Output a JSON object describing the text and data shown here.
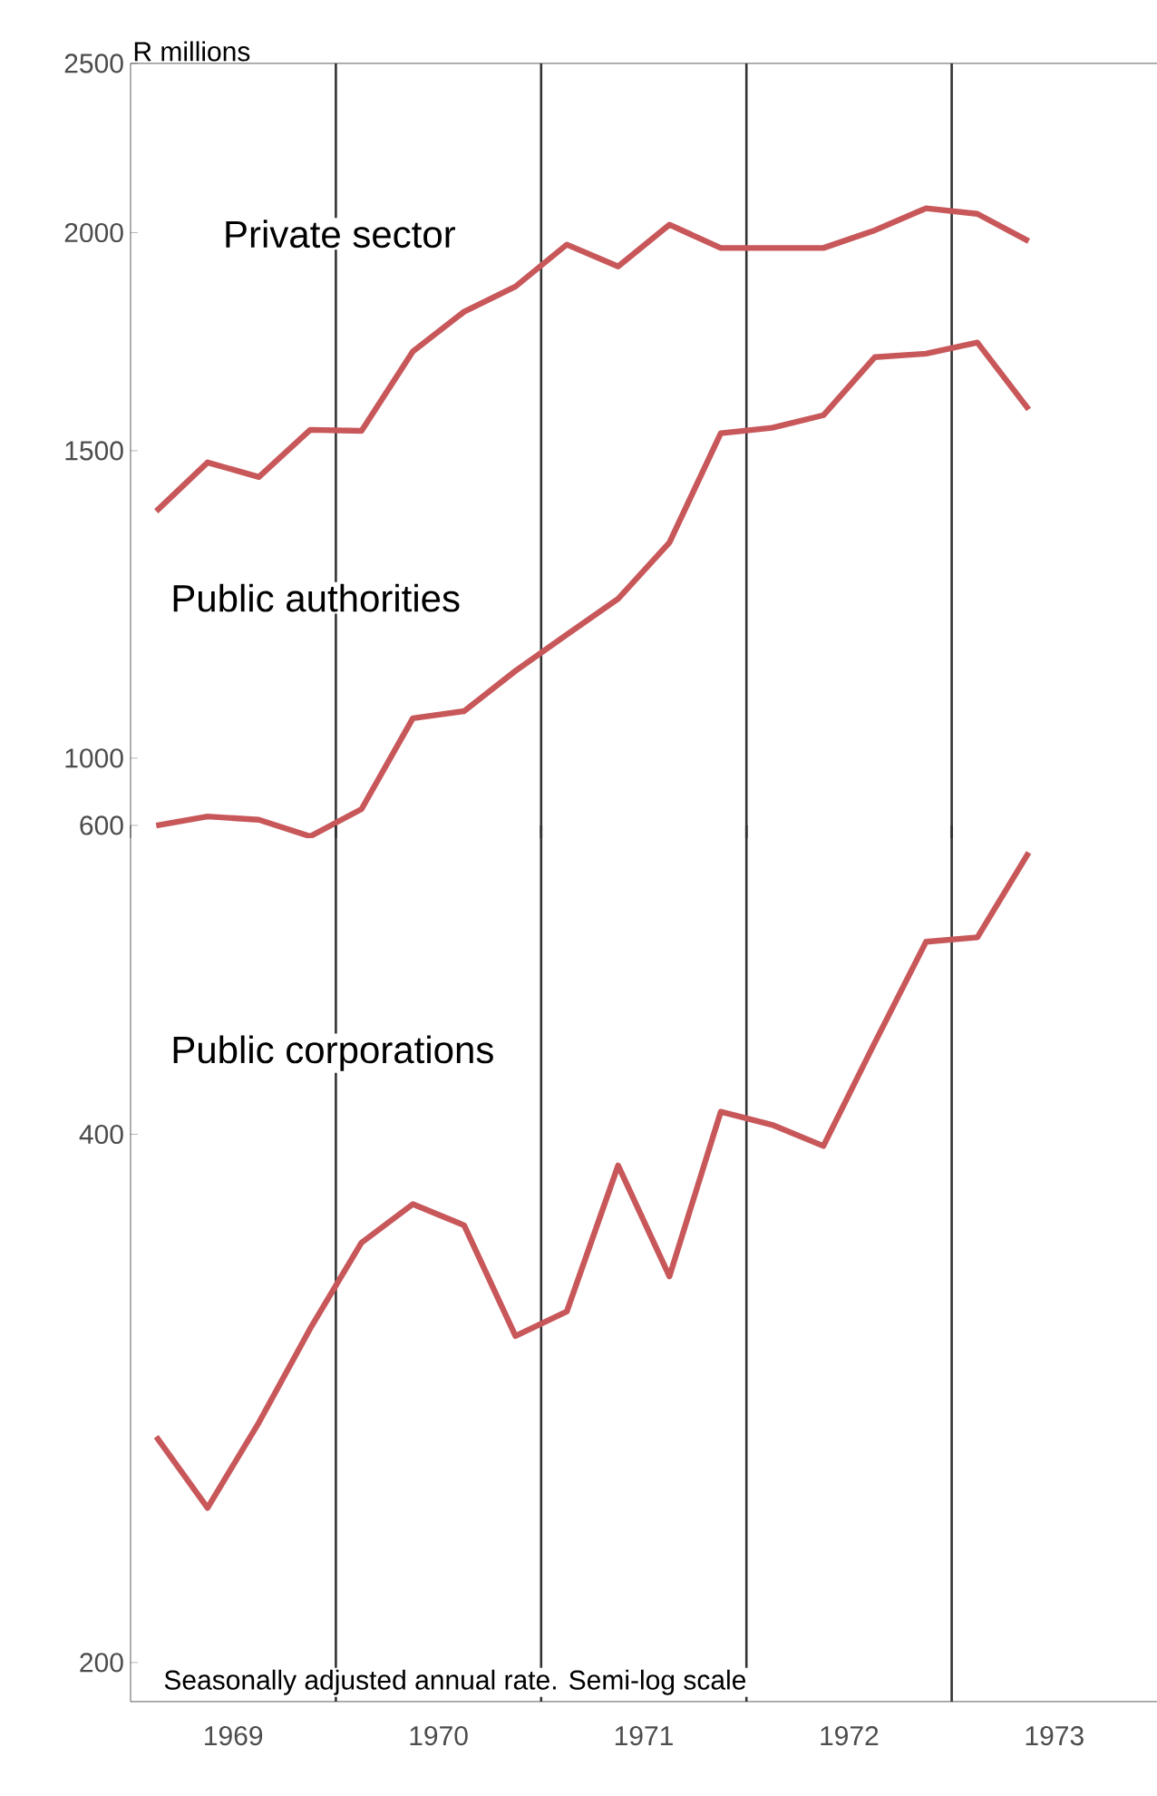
{
  "chart_data": [
    {
      "type": "line",
      "ylabel": "R millions",
      "log": "y",
      "xlim": [
        1969,
        1974
      ],
      "ylim": [
        900,
        2500
      ],
      "yticks": [
        1000,
        1500,
        2000,
        2500
      ],
      "tick_labels": "y",
      "x": [
        1969.125,
        1969.375,
        1969.625,
        1969.875,
        1970.125,
        1970.375,
        1970.625,
        1970.875,
        1971.125,
        1971.375,
        1971.625,
        1971.875,
        1972.125,
        1972.375,
        1972.625,
        1972.875,
        1973.125,
        1973.375
      ],
      "series": [
        {
          "name": "Private sector",
          "color": "#c8575a",
          "values": [
            1385,
            1477,
            1449,
            1542,
            1540,
            1710,
            1802,
            1863,
            1969,
            1913,
            2021,
            1960,
            1960,
            1960,
            2006,
            2065,
            2050,
            1978
          ]
        },
        {
          "name": "Public authorities",
          "color": "#c8575a",
          "values": [
            915,
            926,
            922,
            902,
            935,
            1054,
            1064,
            1122,
            1177,
            1234,
            1329,
            1535,
            1546,
            1572,
            1697,
            1705,
            1730,
            1584
          ]
        }
      ],
      "ref_lines": [
        {
          "axis": "x",
          "value": 1970,
          "color": "#333333"
        },
        {
          "axis": "x",
          "value": 1971,
          "color": "#333333"
        },
        {
          "axis": "x",
          "value": 1972,
          "color": "#333333"
        },
        {
          "axis": "x",
          "value": 1973,
          "color": "#333333"
        }
      ]
    },
    {
      "type": "line",
      "log": "y",
      "xlim": [
        1969,
        1974
      ],
      "ylim": [
        190,
        600
      ],
      "yticks": [
        200,
        400,
        600
      ],
      "xticks": [
        {
          "value": 1969.5,
          "label": "1969"
        },
        {
          "value": 1970.5,
          "label": "1970"
        },
        {
          "value": 1971.5,
          "label": "1971"
        },
        {
          "value": 1972.5,
          "label": "1972"
        },
        {
          "value": 1973.5,
          "label": "1973"
        }
      ],
      "x": [
        1969.125,
        1969.375,
        1969.625,
        1969.875,
        1970.125,
        1970.375,
        1970.625,
        1970.875,
        1971.125,
        1971.375,
        1971.625,
        1971.875,
        1972.125,
        1972.375,
        1972.625,
        1972.875,
        1973.125,
        1973.375
      ],
      "series": [
        {
          "name": "Public corporations",
          "color": "#c8575a",
          "values": [
            269,
            245,
            274,
            310,
            347,
            365,
            355,
            307,
            317,
            384,
            332,
            412,
            405,
            394,
            451,
            515,
            518,
            579
          ]
        }
      ],
      "ref_lines": [
        {
          "axis": "x",
          "value": 1970,
          "color": "#333333"
        },
        {
          "axis": "x",
          "value": 1971,
          "color": "#333333"
        },
        {
          "axis": "x",
          "value": 1972,
          "color": "#333333"
        },
        {
          "axis": "x",
          "value": 1973,
          "color": "#333333"
        }
      ],
      "annotations": [
        "Seasonally adjusted annual rate. Semi-log scale"
      ]
    }
  ]
}
